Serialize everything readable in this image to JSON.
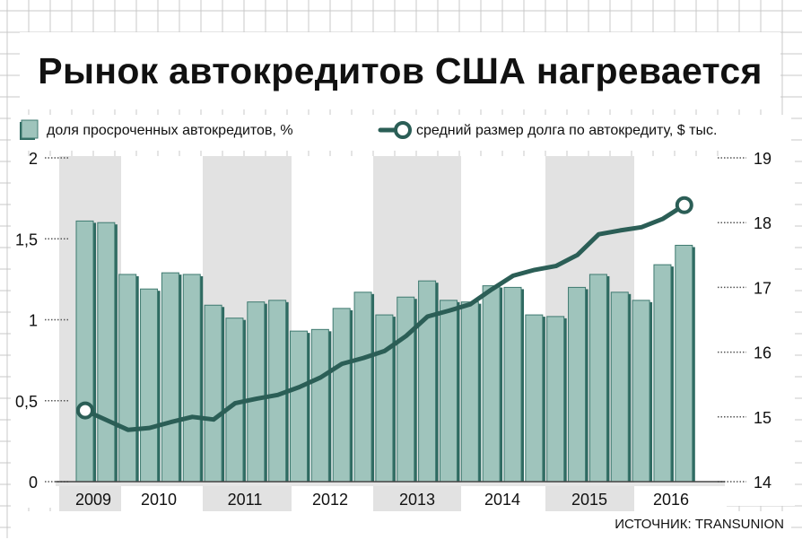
{
  "title": "Рынок автокредитов США нагревается",
  "source": "ИСТОЧНИК: TRANSUNION",
  "colors": {
    "bar": "#9fc4bc",
    "bar_edge": "#3f7a70",
    "bar_shadow": "#2e6a61",
    "line": "#2b5e56",
    "shade": "#e2e2e2",
    "grid": "#c9c9c9"
  },
  "chart_data": {
    "type": "bar+line",
    "legend": {
      "bar_label": "доля просроченных автокредитов, %",
      "line_label": "средний размер долга по автокредиту, $ тыс."
    },
    "years": [
      "2009",
      "2010",
      "2011",
      "2012",
      "2013",
      "2014",
      "2015",
      "2016"
    ],
    "shaded_years": [
      "2009",
      "2011",
      "2013",
      "2015"
    ],
    "left_axis": {
      "ylim": [
        0,
        2
      ],
      "ticks": [
        "0",
        "0,5",
        "1",
        "1,5",
        "2"
      ],
      "tick_values": [
        0,
        0.5,
        1,
        1.5,
        2
      ]
    },
    "right_axis": {
      "ylim": [
        14,
        19
      ],
      "ticks": [
        "14",
        "15",
        "16",
        "17",
        "18",
        "19"
      ],
      "tick_values": [
        14,
        15,
        16,
        17,
        18,
        19
      ]
    },
    "series": [
      {
        "name": "доля просроченных автокредитов, %",
        "kind": "bar",
        "axis": "left",
        "values": [
          1.61,
          1.6,
          1.28,
          1.19,
          1.29,
          1.28,
          1.09,
          1.01,
          1.11,
          1.12,
          0.93,
          0.94,
          1.07,
          1.17,
          1.03,
          1.14,
          1.24,
          1.12,
          1.11,
          1.21,
          1.2,
          1.03,
          1.02,
          1.2,
          1.28,
          1.17,
          1.12,
          1.34,
          1.46
        ]
      },
      {
        "name": "средний размер долга по автокредиту, $ тыс.",
        "kind": "line",
        "axis": "right",
        "values": [
          15.1,
          14.95,
          14.8,
          14.83,
          14.92,
          15.0,
          14.96,
          15.21,
          15.28,
          15.34,
          15.46,
          15.61,
          15.82,
          15.91,
          16.02,
          16.25,
          16.55,
          16.64,
          16.74,
          16.97,
          17.18,
          17.27,
          17.33,
          17.5,
          17.82,
          17.88,
          17.93,
          18.06,
          18.27
        ]
      }
    ]
  }
}
